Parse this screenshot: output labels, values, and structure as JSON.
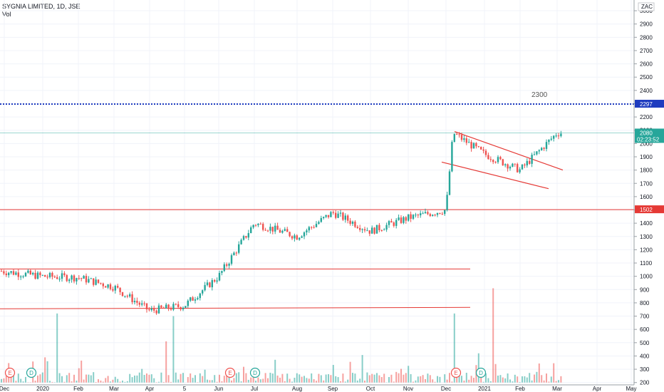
{
  "header": {
    "symbol_line": "SYGNIA LIMITED, 1D, JSE",
    "volume_label": "Vol"
  },
  "currency_badge": "ZAC",
  "colors": {
    "up": "#26a69a",
    "down": "#ef5350",
    "level_line": "#e53935",
    "resistance_dots": "#1e3bbf",
    "last_price_line": "#26a69a"
  },
  "price_tags": {
    "resistance": "2297",
    "support": "1502",
    "last": "2080",
    "countdown": "02:23:52"
  },
  "annotation": "2300",
  "events": [
    {
      "kind": "E",
      "x_label": "Dec"
    },
    {
      "kind": "D",
      "x_label": "2020"
    },
    {
      "kind": "E",
      "x_label": "Jun"
    },
    {
      "kind": "D",
      "x_label": "Jul"
    },
    {
      "kind": "E",
      "x_label": "Dec"
    },
    {
      "kind": "D",
      "x_label": "2021"
    }
  ],
  "chart_data": {
    "type": "candlestick",
    "ylim": [
      200,
      3100
    ],
    "y_ticks": [
      "3000",
      "2900",
      "2800",
      "2700",
      "2600",
      "2500",
      "2400",
      "2300",
      "2200",
      "2100",
      "2000",
      "1900",
      "1800",
      "1700",
      "1600",
      "1500",
      "1400",
      "1300",
      "1200",
      "1100",
      "1000",
      "900",
      "800",
      "700",
      "600",
      "500",
      "400",
      "300",
      "200"
    ],
    "x_ticks": [
      "Dec",
      "2020",
      "Feb",
      "Mar",
      "Apr",
      "5",
      "Jun",
      "Jul",
      "Aug",
      "Sep",
      "Oct",
      "Nov",
      "Dec",
      "2021",
      "Feb",
      "Mar",
      "Apr",
      "May"
    ],
    "levels": [
      {
        "name": "resistance",
        "value": 2297,
        "style": "dotted"
      },
      {
        "name": "support",
        "value": 1502,
        "style": "solid"
      },
      {
        "name": "range-top",
        "value": 1055,
        "style": "solid"
      },
      {
        "name": "range-bottom",
        "value": 755,
        "style": "solid"
      }
    ],
    "channel": [
      {
        "from": [
          "Dec",
          2090
        ],
        "to": [
          "Mar",
          1800
        ]
      },
      {
        "from": [
          "Dec",
          1860
        ],
        "to": [
          "Feb",
          1660
        ]
      }
    ],
    "price_path": [
      [
        "Dec",
        1040
      ],
      [
        "2020",
        1000
      ],
      [
        "Feb",
        990
      ],
      [
        "Mar",
        920
      ],
      [
        "Apr",
        740
      ],
      [
        "5",
        780
      ],
      [
        "Jun",
        1000
      ],
      [
        "Jul",
        1400
      ],
      [
        "Aug",
        1300
      ],
      [
        "Sep",
        1480
      ],
      [
        "Oct",
        1340
      ],
      [
        "Nov",
        1440
      ],
      [
        "Dec",
        1500
      ],
      [
        "Dec",
        2080
      ],
      [
        "2021",
        1920
      ],
      [
        "Feb",
        1800
      ],
      [
        "Mar",
        2080
      ]
    ],
    "last_close": 2080
  }
}
